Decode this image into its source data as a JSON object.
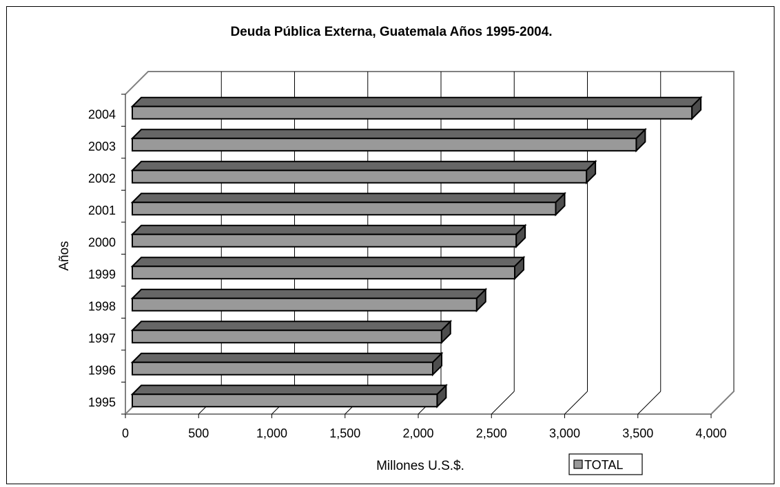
{
  "chart_data": {
    "type": "bar",
    "orientation": "horizontal",
    "style": "3d",
    "title": "Deuda Pública Externa, Guatemala Años 1995-2004.",
    "xlabel": "Millones U.S.$.",
    "ylabel": "Años",
    "xlim": [
      0,
      4000
    ],
    "xticks": [
      "0",
      "500",
      "1,000",
      "1,500",
      "2,000",
      "2,500",
      "3,000",
      "3,500",
      "4,000"
    ],
    "xtick_values": [
      0,
      500,
      1000,
      1500,
      2000,
      2500,
      3000,
      3500,
      4000
    ],
    "categories": [
      "1995",
      "1996",
      "1997",
      "1998",
      "1999",
      "2000",
      "2001",
      "2002",
      "2003",
      "2004"
    ],
    "series": [
      {
        "name": "TOTAL",
        "values": [
          2110,
          2080,
          2140,
          2380,
          2640,
          2650,
          2920,
          3130,
          3470,
          3850
        ]
      }
    ],
    "grid": "vertical",
    "legend": "bottom-right",
    "colors": {
      "bar_front": "#999999",
      "bar_top": "#666666",
      "bar_side": "#4d4d4d",
      "wall_lines": "#808080",
      "legend_swatch": "#999999"
    }
  }
}
